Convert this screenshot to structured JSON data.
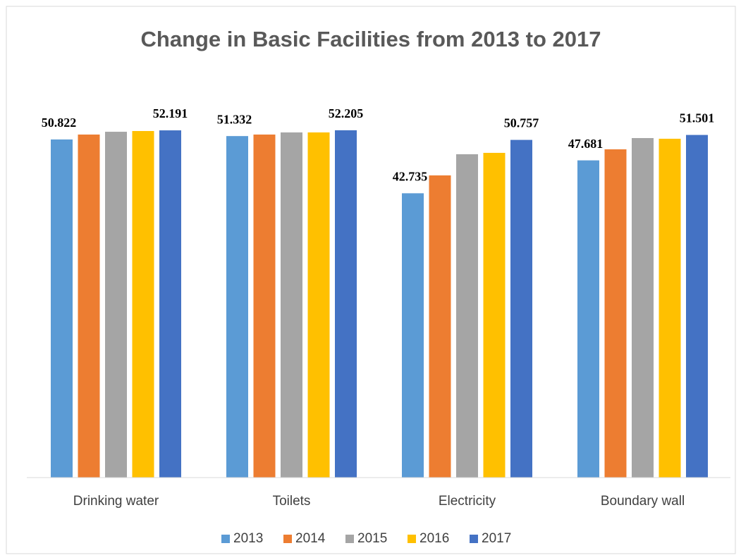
{
  "chart_data": {
    "type": "bar",
    "title": "Change in Basic Facilities from 2013 to 2017",
    "categories": [
      "Drinking water",
      "Toilets",
      "Electricity",
      "Boundary wall"
    ],
    "series": [
      {
        "name": "2013",
        "color": "#5b9bd5",
        "values": [
          50.822,
          51.332,
          42.735,
          47.681
        ],
        "data_labels": true
      },
      {
        "name": "2014",
        "color": "#ed7d31",
        "values": [
          51.56,
          51.56,
          45.42,
          49.34
        ],
        "data_labels": false
      },
      {
        "name": "2015",
        "color": "#a5a5a5",
        "values": [
          51.98,
          51.88,
          48.6,
          51.03
        ],
        "data_labels": false
      },
      {
        "name": "2016",
        "color": "#ffc000",
        "values": [
          52.09,
          51.88,
          48.81,
          50.93
        ],
        "data_labels": false
      },
      {
        "name": "2017",
        "color": "#4472c4",
        "values": [
          52.191,
          52.205,
          50.757,
          51.501
        ],
        "data_labels": true
      }
    ],
    "ylim": [
      0,
      60
    ],
    "grid": false,
    "legend": "bottom"
  }
}
